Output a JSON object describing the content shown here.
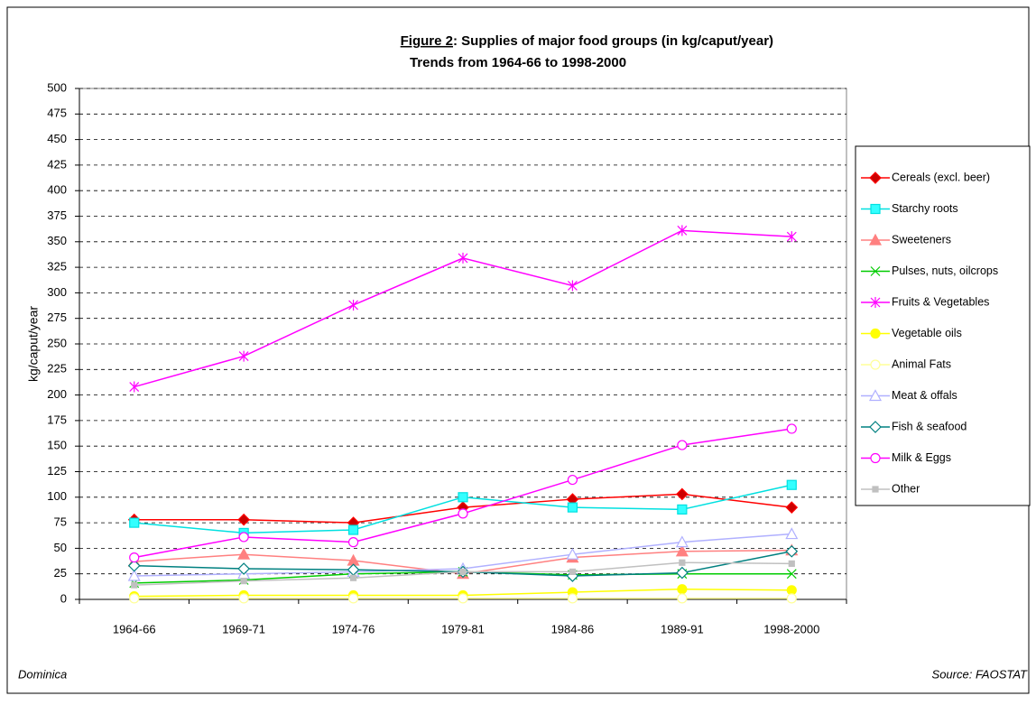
{
  "chart_data": {
    "type": "line",
    "figure_label": "Figure 2",
    "title": ": Supplies of major food groups (in kg/caput/year)",
    "subtitle": "Trends from 1964-66 to 1998-2000",
    "y_label": "kg/caput/year",
    "footnote_left": "Dominica",
    "footnote_right": "Source: FAOSTAT",
    "categories": [
      "1964-66",
      "1969-71",
      "1974-76",
      "1979-81",
      "1984-86",
      "1989-91",
      "1998-2000"
    ],
    "ylim": [
      0,
      500
    ],
    "yticks": [
      0,
      25,
      50,
      75,
      100,
      125,
      150,
      175,
      200,
      225,
      250,
      275,
      300,
      325,
      350,
      375,
      400,
      425,
      450,
      475,
      500
    ],
    "grid": true,
    "legend": "right",
    "series": [
      {
        "name": "Cereals (excl. beer)",
        "color": "#ff0000",
        "marker": "diamond",
        "marker_fill": "#cc0000",
        "values": [
          78,
          78,
          75,
          90,
          98,
          103,
          90
        ]
      },
      {
        "name": "Starchy roots",
        "color": "#00e0e0",
        "marker": "square",
        "marker_fill": "#33ffff",
        "values": [
          75,
          65,
          68,
          100,
          90,
          88,
          112
        ]
      },
      {
        "name": "Sweeteners",
        "color": "#ff8080",
        "marker": "triangle",
        "marker_fill": "#ff8080",
        "values": [
          37,
          44,
          38,
          25,
          41,
          47,
          48
        ]
      },
      {
        "name": "Pulses, nuts, oilcrops",
        "color": "#00cc00",
        "marker": "x",
        "marker_fill": "none",
        "values": [
          16,
          19,
          25,
          27,
          24,
          25,
          25
        ]
      },
      {
        "name": "Fruits & Vegetables",
        "color": "#ff00ff",
        "marker": "star",
        "marker_fill": "none",
        "values": [
          208,
          238,
          288,
          334,
          307,
          361,
          355
        ]
      },
      {
        "name": "Vegetable oils",
        "color": "#ffff00",
        "marker": "circle",
        "marker_fill": "#ffff00",
        "values": [
          3,
          4,
          4,
          4,
          7,
          10,
          9
        ]
      },
      {
        "name": "Animal Fats",
        "color": "#ffff99",
        "marker": "circle",
        "marker_fill": "#ffffff",
        "values": [
          1,
          1,
          1,
          1,
          1,
          1,
          1
        ]
      },
      {
        "name": "Meat & offals",
        "color": "#b0b0ff",
        "marker": "triangle",
        "marker_fill": "#ffffff",
        "values": [
          23,
          25,
          27,
          30,
          44,
          56,
          64
        ]
      },
      {
        "name": "Fish & seafood",
        "color": "#008080",
        "marker": "diamond",
        "marker_fill": "#ffffff",
        "values": [
          33,
          30,
          29,
          27,
          23,
          26,
          47
        ]
      },
      {
        "name": "Milk & Eggs",
        "color": "#ff00ff",
        "marker": "circle",
        "marker_fill": "#ffffff",
        "values": [
          41,
          61,
          56,
          84,
          117,
          151,
          167
        ]
      },
      {
        "name": "Other",
        "color": "#c0c0c0",
        "marker": "smallsquare",
        "marker_fill": "#c0c0c0",
        "values": [
          14,
          18,
          21,
          27,
          27,
          36,
          35
        ]
      }
    ]
  }
}
